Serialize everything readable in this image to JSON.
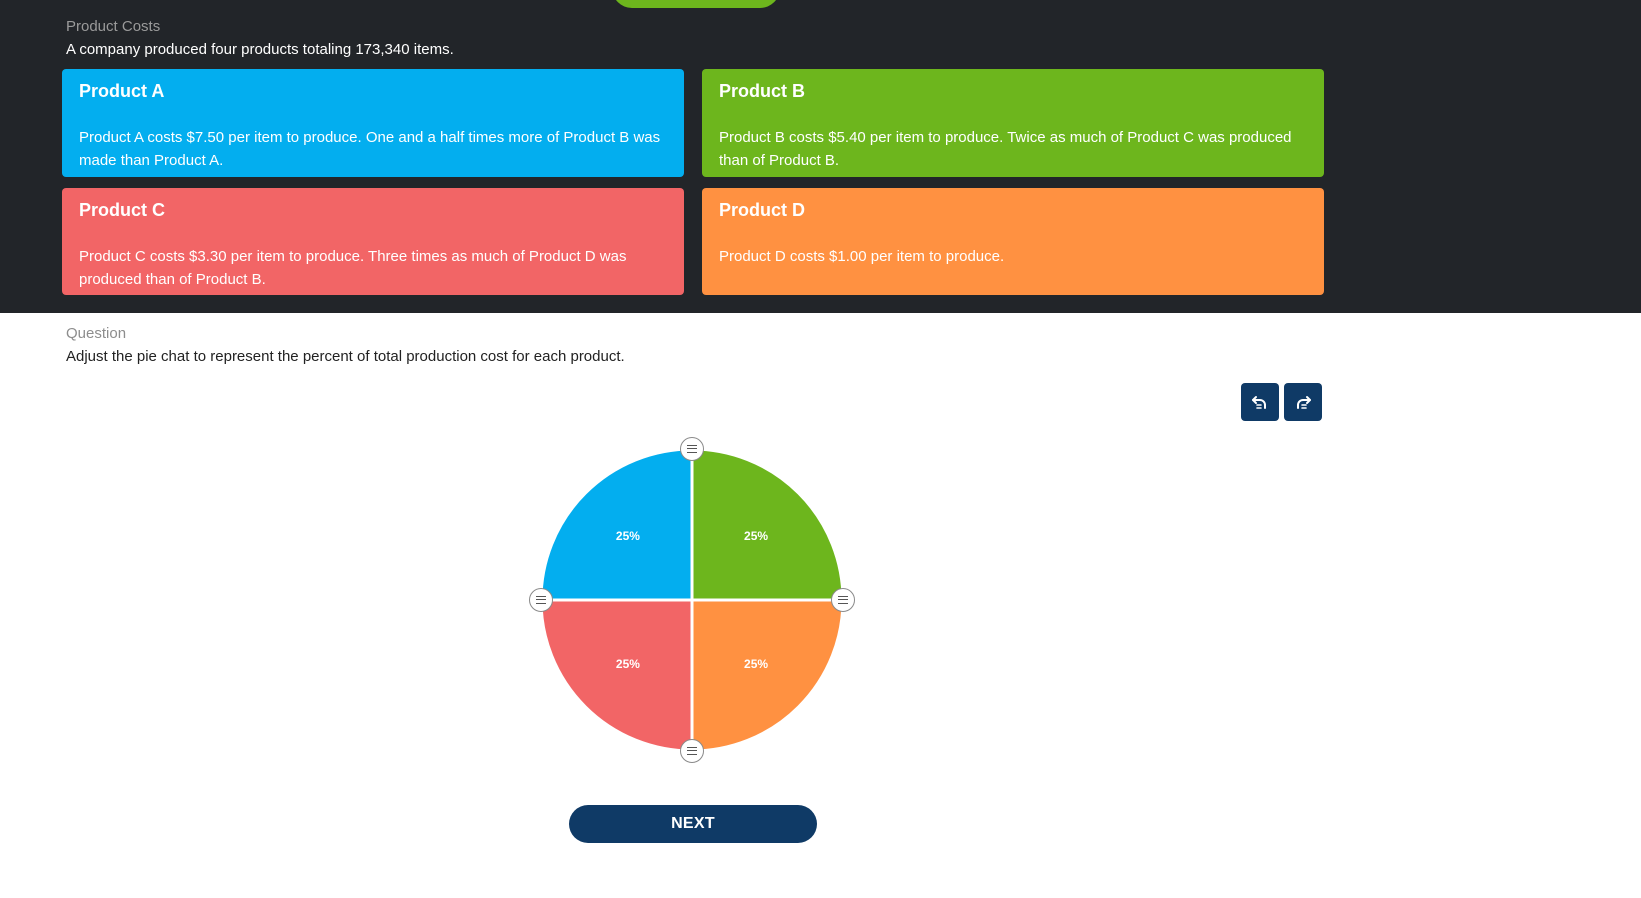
{
  "colors": {
    "product_a": "#03aeef",
    "product_b": "#6db61d",
    "product_c": "#f26566",
    "product_d": "#ff9141",
    "dark_bg": "#222529",
    "button": "#0f3a66"
  },
  "costs_section": {
    "label": "Product Costs",
    "intro": "A company produced four products totaling 173,340 items."
  },
  "products": [
    {
      "title": "Product A",
      "text": "Product A costs $7.50 per item to produce. One and a half times more of Product B was made than Product A."
    },
    {
      "title": "Product B",
      "text": "Product B costs $5.40 per item to produce. Twice as much of Product C was produced than of Product B."
    },
    {
      "title": "Product C",
      "text": "Product C costs $3.30 per item to produce. Three times as much of Product D was produced than of Product B."
    },
    {
      "title": "Product D",
      "text": "Product D costs $1.00 per item to produce."
    }
  ],
  "question": {
    "label": "Question",
    "text": "Adjust the pie chat to represent the percent of total production cost for each product."
  },
  "toolbar": {
    "undo_icon": "undo-icon",
    "redo_icon": "redo-icon"
  },
  "chart_data": {
    "type": "pie",
    "slices": [
      {
        "label": "25%",
        "value": 25,
        "color": "#03aeef"
      },
      {
        "label": "25%",
        "value": 25,
        "color": "#6db61d"
      },
      {
        "label": "25%",
        "value": 25,
        "color": "#ff9141"
      },
      {
        "label": "25%",
        "value": 25,
        "color": "#f26566"
      }
    ]
  },
  "next_label": "NEXT"
}
